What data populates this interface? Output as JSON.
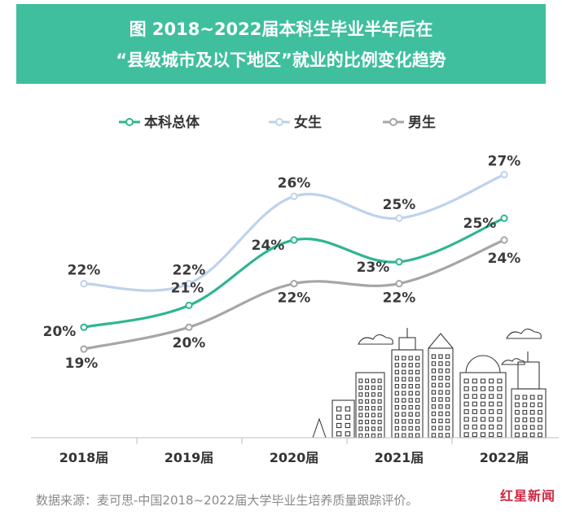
{
  "title": {
    "line1": "图  2018~2022届本科生毕业半年后在",
    "line2": "“县级城市及以下地区”就业的比例变化趋势"
  },
  "footer": {
    "source": "数据来源：麦可思-中国2018~2022届大学毕业生培养质量跟踪评价。"
  },
  "watermark": {
    "text": "红星新闻"
  },
  "colors": {
    "banner": "#3fbf9d",
    "total": "#2fb592",
    "female": "#bdd3ec",
    "male": "#a6a6a6"
  },
  "chart_data": {
    "type": "line",
    "categories": [
      "2018届",
      "2019届",
      "2020届",
      "2021届",
      "2022届"
    ],
    "series": [
      {
        "name": "本科总体",
        "values": [
          20,
          21,
          24,
          23,
          25
        ],
        "labels": [
          "20%",
          "21%",
          "24%",
          "23%",
          "25%"
        ]
      },
      {
        "name": "女生",
        "values": [
          22,
          22,
          26,
          25,
          27
        ],
        "labels": [
          "22%",
          "22%",
          "26%",
          "25%",
          "27%"
        ]
      },
      {
        "name": "男生",
        "values": [
          19,
          20,
          22,
          22,
          24
        ],
        "labels": [
          "19%",
          "20%",
          "22%",
          "22%",
          "24%"
        ]
      }
    ],
    "legend": "top",
    "grid": false
  }
}
